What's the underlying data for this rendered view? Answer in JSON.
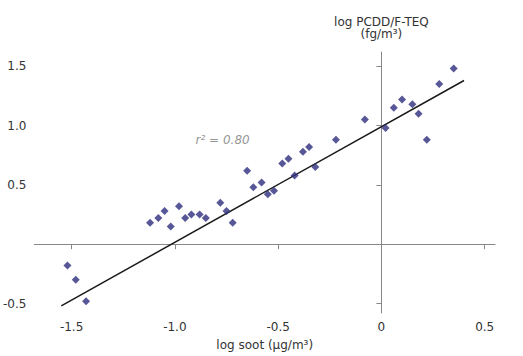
{
  "chart_data": {
    "type": "scatter",
    "xlabel": "log soot (μg/m³)",
    "ylabel": "log PCDD/F-TEQ\n(fg/m³)",
    "xlim": [
      -1.68,
      0.55
    ],
    "ylim": [
      -0.58,
      1.62
    ],
    "xticks": [
      -1.5,
      {
        "value": -1.0,
        "label": "-1.0"
      },
      -0.5,
      0,
      0.5
    ],
    "yticks": [
      -0.5,
      0.5,
      {
        "value": 1.0,
        "label": "1.0"
      },
      1.5
    ],
    "grid": false,
    "series": [
      {
        "type": "scatter",
        "marker": "diamond",
        "color": "#2d2d7e",
        "x": [
          -1.52,
          -1.48,
          -1.43,
          -1.12,
          -1.08,
          -1.05,
          -1.02,
          -0.98,
          -0.95,
          -0.92,
          -0.88,
          -0.85,
          -0.78,
          -0.75,
          -0.72,
          -0.65,
          -0.62,
          -0.58,
          -0.55,
          -0.52,
          -0.48,
          -0.45,
          -0.42,
          -0.38,
          -0.35,
          -0.32,
          -0.22,
          -0.08,
          0.02,
          0.06,
          0.1,
          0.15,
          0.18,
          0.22,
          0.28,
          0.35
        ],
        "values": [
          -0.18,
          -0.3,
          -0.48,
          0.18,
          0.22,
          0.28,
          0.15,
          0.32,
          0.22,
          0.25,
          0.25,
          0.22,
          0.35,
          0.28,
          0.18,
          0.62,
          0.48,
          0.52,
          0.42,
          0.45,
          0.68,
          0.72,
          0.58,
          0.78,
          0.82,
          0.65,
          0.88,
          1.05,
          0.98,
          1.15,
          1.22,
          1.18,
          1.1,
          0.88,
          1.35,
          1.48
        ]
      },
      {
        "type": "line",
        "color": "#1a1a1a",
        "x": [
          -1.55,
          0.4
        ],
        "values": [
          -0.52,
          1.38
        ]
      }
    ],
    "annotations": [
      {
        "text": "r² = 0.80",
        "x": -0.9,
        "y": 0.88
      }
    ]
  }
}
